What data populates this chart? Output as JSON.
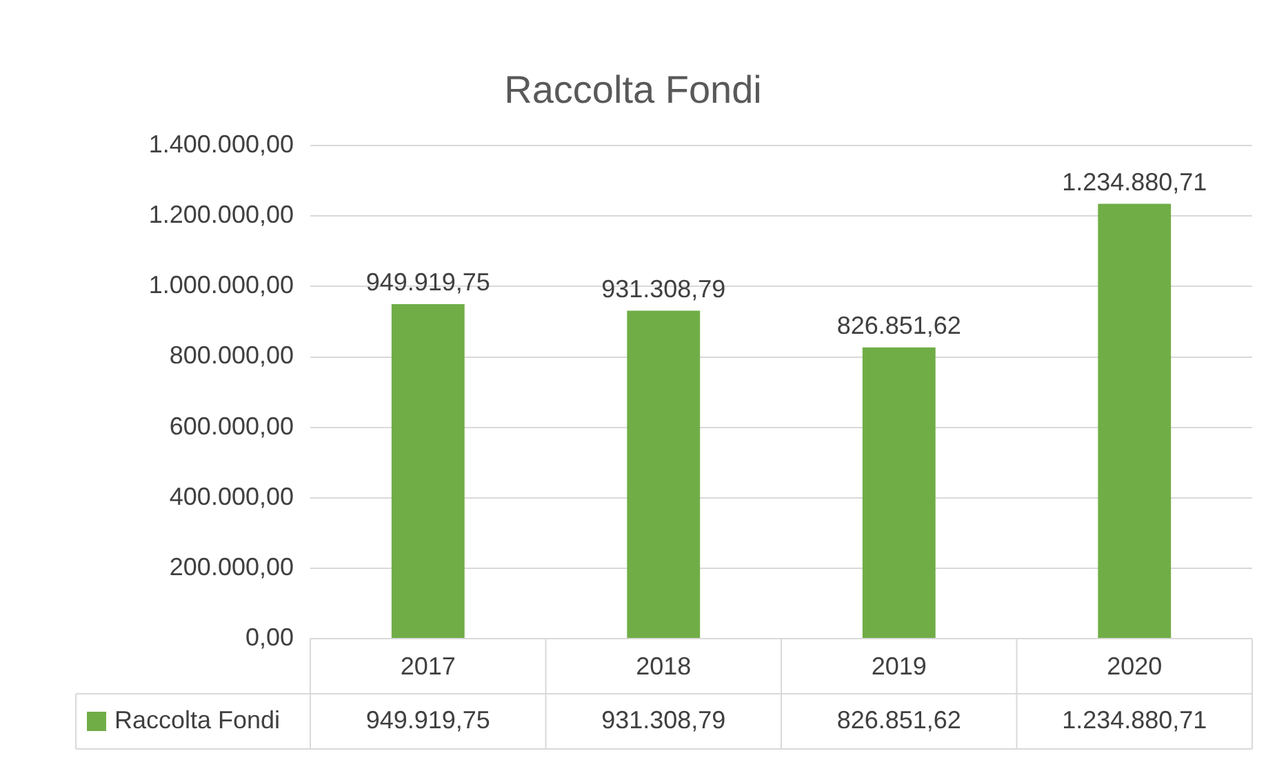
{
  "chart_data": {
    "type": "bar",
    "title": "Raccolta Fondi",
    "categories": [
      "2017",
      "2018",
      "2019",
      "2020"
    ],
    "series": [
      {
        "name": "Raccolta Fondi",
        "color": "#70ad47",
        "values": [
          949919.75,
          931308.79,
          826851.62,
          1234880.71
        ],
        "value_labels": [
          "949.919,75",
          "931.308,79",
          "826.851,62",
          "1.234.880,71"
        ]
      }
    ],
    "ylim": [
      0,
      1400000
    ],
    "yticks": [
      {
        "value": 0,
        "label": "0,00"
      },
      {
        "value": 200000,
        "label": "200.000,00"
      },
      {
        "value": 400000,
        "label": "400.000,00"
      },
      {
        "value": 600000,
        "label": "600.000,00"
      },
      {
        "value": 800000,
        "label": "800.000,00"
      },
      {
        "value": 1000000,
        "label": "1.000.000,00"
      },
      {
        "value": 1200000,
        "label": "1.200.000,00"
      },
      {
        "value": 1400000,
        "label": "1.400.000,00"
      }
    ],
    "grid": "y"
  }
}
